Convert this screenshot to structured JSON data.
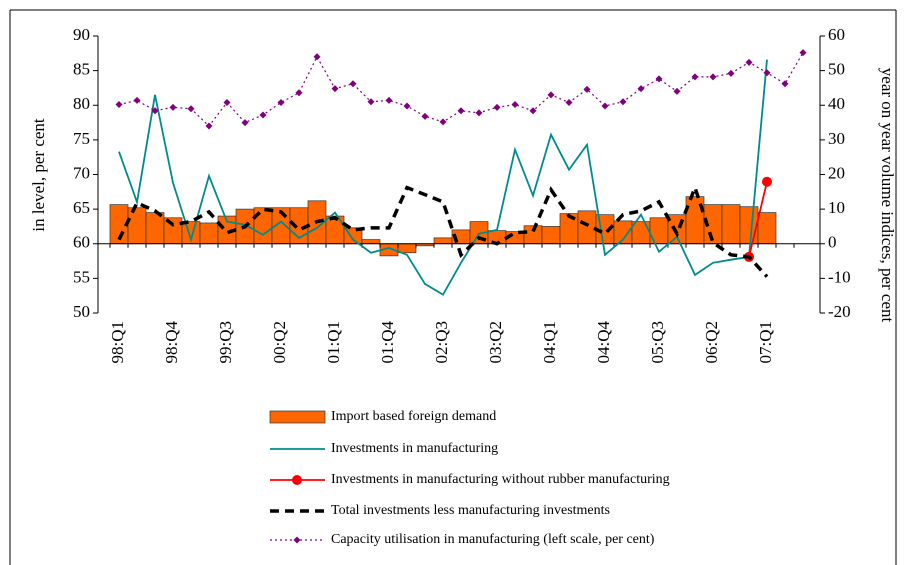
{
  "chart_data": {
    "type": "bar",
    "ylabel": "in level, per cent",
    "y2label": "year on year volume indices, per cent",
    "categories": [
      "98:Q1",
      null,
      null,
      "98:Q4",
      null,
      null,
      "99:Q3",
      null,
      null,
      "00:Q2",
      null,
      null,
      "01:Q1",
      null,
      null,
      "01:Q4",
      null,
      null,
      "02:Q3",
      null,
      null,
      "03:Q2",
      null,
      null,
      "04:Q1",
      null,
      null,
      "04:Q4",
      null,
      null,
      "05:Q3",
      null,
      null,
      "06:Q2",
      null,
      null,
      "07:Q1",
      null,
      null
    ],
    "ylim": [
      50,
      90
    ],
    "yticks": [
      50,
      55,
      60,
      65,
      70,
      75,
      80,
      85,
      90
    ],
    "y2lim": [
      -20,
      60
    ],
    "y2ticks": [
      -20,
      -10,
      0,
      10,
      20,
      30,
      40,
      50,
      60
    ],
    "series": [
      {
        "name": "Import based foreign demand",
        "type": "bar",
        "axis": "y2",
        "color": "#ff6600",
        "values": [
          11.3,
          10.4,
          9,
          7.5,
          6.4,
          6,
          8,
          10,
          10.4,
          10.4,
          10.4,
          12.4,
          8,
          4.6,
          1.2,
          -3.5,
          -2.6,
          -0.6,
          1.7,
          4,
          6.4,
          3.8,
          3.5,
          5.2,
          5,
          8.7,
          9.5,
          8.4,
          6.6,
          6.4,
          7.5,
          8.4,
          13.6,
          11.3,
          11.3,
          10.7,
          9,
          null,
          null
        ]
      },
      {
        "name": "Investments in manufacturing",
        "type": "line",
        "axis": "y2",
        "color": "#008b8b",
        "values": [
          26.6,
          12,
          43,
          17.6,
          1.2,
          19.6,
          6.4,
          5.5,
          2.6,
          6.4,
          1.7,
          4.6,
          9,
          1.2,
          -2.6,
          -1.2,
          -3.2,
          -11.6,
          -14.7,
          -5.5,
          2.9,
          4,
          27.2,
          13.9,
          31.5,
          21.4,
          28.6,
          -3.2,
          1.2,
          8.4,
          -2.3,
          2,
          -9,
          -5.5,
          -4.6,
          -3.8,
          53.2,
          null,
          null
        ]
      },
      {
        "name": "Investments in manufacturing without rubber manufacturing",
        "type": "line",
        "axis": "y2",
        "color": "#ff0000",
        "marker": "circle",
        "values": [
          null,
          null,
          null,
          null,
          null,
          null,
          null,
          null,
          null,
          null,
          null,
          null,
          null,
          null,
          null,
          null,
          null,
          null,
          null,
          null,
          null,
          null,
          null,
          null,
          null,
          null,
          null,
          null,
          null,
          null,
          null,
          null,
          null,
          null,
          null,
          -3.8,
          17.9,
          null,
          null
        ]
      },
      {
        "name": "Total investments less manufacturing investments",
        "type": "line",
        "axis": "y2",
        "color": "#000000",
        "dash": "dashed",
        "values": [
          1.2,
          11.8,
          9.5,
          5.5,
          6.4,
          9.2,
          3.2,
          4.9,
          10,
          9.2,
          4,
          6.4,
          7.5,
          4,
          4.6,
          4.6,
          16.2,
          14.2,
          12.1,
          -3.2,
          1.7,
          0,
          3.2,
          3.5,
          15.6,
          8,
          5.5,
          2.9,
          8.4,
          9.5,
          12.1,
          2.9,
          16.2,
          0.3,
          -3.2,
          -3.8,
          -9.5,
          null,
          null
        ]
      },
      {
        "name": "Capacity utilisation in manufacturing (left scale, per cent)",
        "type": "line",
        "axis": "y",
        "color": "#800080",
        "dash": "dotted",
        "marker": "diamond",
        "values": [
          80.1,
          80.7,
          79.2,
          79.7,
          79.5,
          77,
          80.4,
          77.5,
          78.6,
          80.4,
          81.8,
          87,
          82.4,
          83.1,
          80.5,
          80.7,
          79.9,
          78.4,
          77.6,
          79.2,
          78.9,
          79.7,
          80.1,
          79.2,
          81.5,
          80.4,
          82.3,
          79.9,
          80.5,
          82.4,
          83.8,
          82,
          84.1,
          84.1,
          84.6,
          86.2,
          84.7,
          83.1,
          87.6
        ]
      }
    ]
  }
}
